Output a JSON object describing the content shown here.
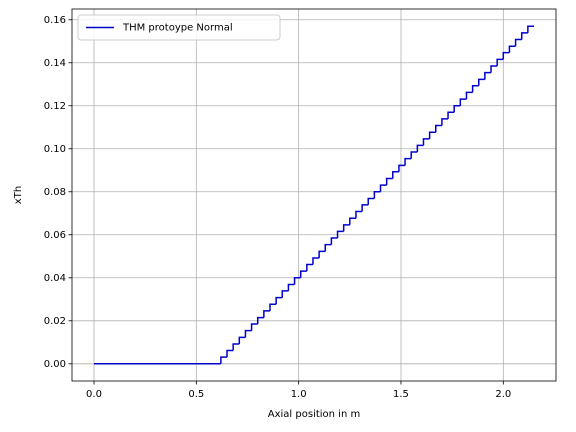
{
  "chart_data": {
    "type": "line",
    "drawstyle": "steps-post",
    "xlabel": "Axial position in m",
    "ylabel": "xTh",
    "x": [
      0,
      0.62,
      0.65,
      0.68,
      0.71,
      0.74,
      0.77,
      0.8,
      0.83,
      0.86,
      0.89,
      0.92,
      0.95,
      0.98,
      1.01,
      1.04,
      1.07,
      1.1,
      1.13,
      1.16,
      1.19,
      1.22,
      1.25,
      1.28,
      1.31,
      1.34,
      1.37,
      1.4,
      1.43,
      1.46,
      1.49,
      1.52,
      1.55,
      1.58,
      1.61,
      1.64,
      1.67,
      1.7,
      1.73,
      1.76,
      1.79,
      1.82,
      1.85,
      1.88,
      1.91,
      1.94,
      1.97,
      2.0,
      2.03,
      2.06,
      2.09,
      2.12,
      2.15
    ],
    "series": [
      {
        "name": "THM protoype Normal",
        "color": "#0000cd",
        "values": [
          0,
          0.0031,
          0.0062,
          0.0092,
          0.0123,
          0.0154,
          0.0185,
          0.0215,
          0.0246,
          0.0277,
          0.0308,
          0.0339,
          0.0369,
          0.04,
          0.0431,
          0.0462,
          0.0492,
          0.0523,
          0.0554,
          0.0585,
          0.0616,
          0.0646,
          0.0677,
          0.0708,
          0.0739,
          0.0769,
          0.08,
          0.0831,
          0.0862,
          0.0893,
          0.0923,
          0.0954,
          0.0985,
          0.1016,
          0.1046,
          0.1077,
          0.1108,
          0.1139,
          0.117,
          0.12,
          0.1231,
          0.1262,
          0.1293,
          0.1323,
          0.1354,
          0.1385,
          0.1416,
          0.1447,
          0.1477,
          0.1508,
          0.1539,
          0.157,
          0.157
        ]
      }
    ],
    "xlim": [
      -0.1075,
      2.2575
    ],
    "xticks": [
      {
        "value": 0,
        "label": "0.0"
      },
      0.5,
      {
        "value": 1,
        "label": "1.0"
      },
      1.5,
      {
        "value": 2,
        "label": "2.0"
      }
    ],
    "ylim": [
      -0.008,
      0.165
    ],
    "yticks": [
      {
        "value": 0,
        "label": "0.00"
      },
      {
        "value": 0.02,
        "label": "0.02"
      },
      {
        "value": 0.04,
        "label": "0.04"
      },
      {
        "value": 0.06,
        "label": "0.06"
      },
      {
        "value": 0.08,
        "label": "0.08"
      },
      {
        "value": 0.1,
        "label": "0.10"
      },
      {
        "value": 0.12,
        "label": "0.12"
      },
      {
        "value": 0.14,
        "label": "0.14"
      },
      {
        "value": 0.16,
        "label": "0.16"
      }
    ],
    "grid": true,
    "legend": "upper left"
  }
}
